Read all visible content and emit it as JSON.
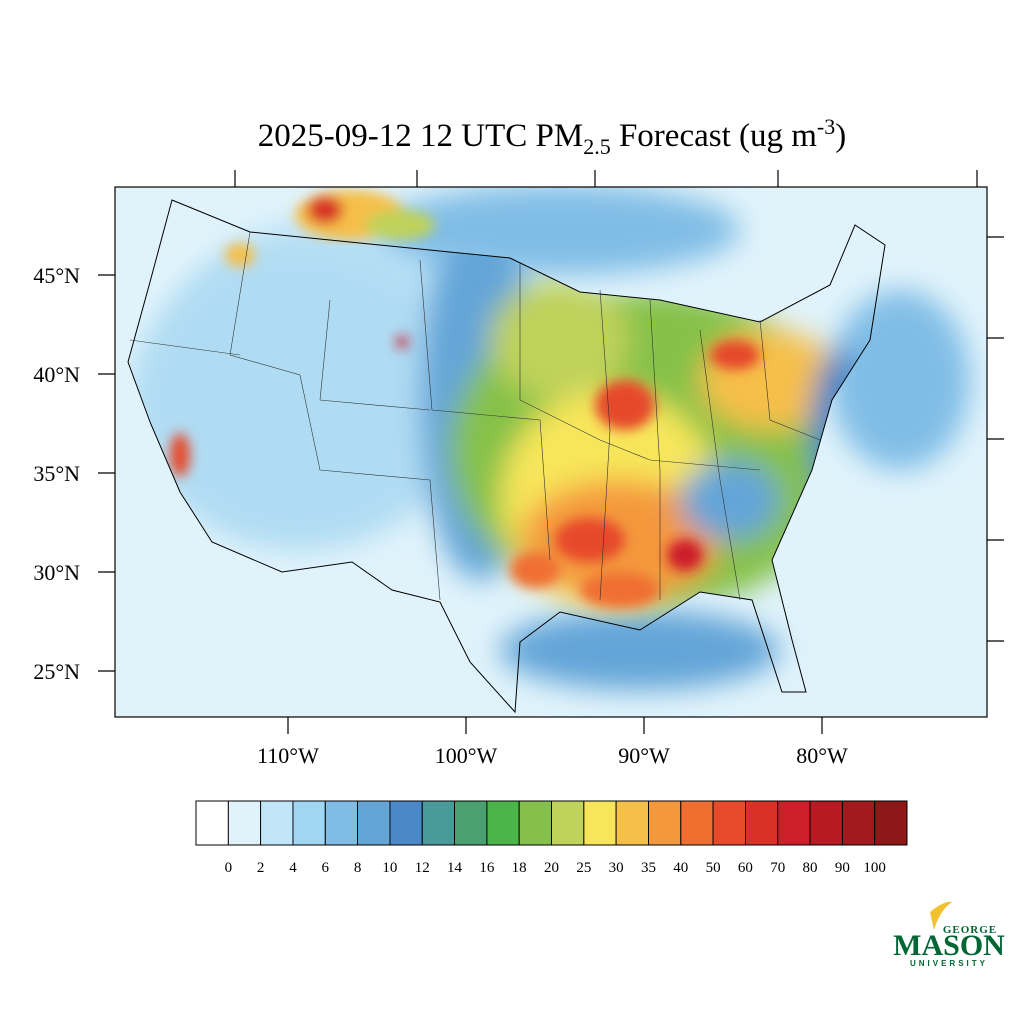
{
  "title": {
    "main": "2025-09-12 12 UTC PM",
    "sub": "2.5",
    "mid": " Forecast (ug m",
    "sup": "-3",
    "end": ")"
  },
  "map": {
    "lat_ticks": [
      {
        "value": 45,
        "label": "45°N"
      },
      {
        "value": 40,
        "label": "40°N"
      },
      {
        "value": 35,
        "label": "35°N"
      },
      {
        "value": 30,
        "label": "30°N"
      },
      {
        "value": 25,
        "label": "25°N"
      }
    ],
    "lon_ticks": [
      {
        "value": -110,
        "label": "110°W"
      },
      {
        "value": -100,
        "label": "100°W"
      },
      {
        "value": -90,
        "label": "90°W"
      },
      {
        "value": -80,
        "label": "80°W"
      }
    ]
  },
  "colorbar": {
    "levels": [
      0,
      2,
      4,
      6,
      8,
      10,
      12,
      14,
      16,
      18,
      20,
      25,
      30,
      35,
      40,
      50,
      60,
      70,
      80,
      90,
      100
    ],
    "colors": [
      "#ffffff",
      "#e0f3fb",
      "#c0e6f7",
      "#9fd6f2",
      "#80bde6",
      "#64a5d8",
      "#4a88c7",
      "#4a9a9a",
      "#4aa070",
      "#4cb54a",
      "#85c14a",
      "#bfd25a",
      "#f7e65a",
      "#f6bf4a",
      "#f4983c",
      "#f06e30",
      "#e64a2a",
      "#d83226",
      "#cc1f2a",
      "#b81a24",
      "#a31a1e",
      "#8c1818"
    ]
  },
  "logo": {
    "top": "GEORGE",
    "main": "MASON",
    "bottom": "UNIVERSITY"
  }
}
